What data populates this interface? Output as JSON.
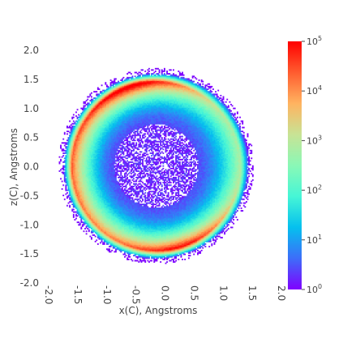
{
  "chart_data": {
    "type": "heatmap",
    "title": "",
    "xlabel": "x(C), Angstroms",
    "ylabel": "z(C), Angstroms",
    "xlim": [
      -2.0,
      2.0
    ],
    "ylim": [
      -2.0,
      2.0
    ],
    "x_ticks": [
      "-2.0",
      "-1.5",
      "-1.0",
      "-0.5",
      "0.0",
      "0.5",
      "1.0",
      "1.5",
      "2.0"
    ],
    "y_ticks": [
      "2.0",
      "1.5",
      "1.0",
      "0.5",
      "0.0",
      "-0.5",
      "-1.0",
      "-1.5",
      "-2.0"
    ],
    "grid": false,
    "density": {
      "center": [
        -0.05,
        0.0
      ],
      "outer_radius": 1.6,
      "inner_sparse_radius": 0.72,
      "peak_ring_radius": 1.45,
      "peak_angles_deg": [
        -75,
        100
      ],
      "min_count": 1,
      "max_count": 100000
    },
    "colorbar": {
      "scale": "log",
      "range": [
        1,
        100000
      ],
      "ticks": [
        {
          "base": "10",
          "exp": "0"
        },
        {
          "base": "10",
          "exp": "1"
        },
        {
          "base": "10",
          "exp": "2"
        },
        {
          "base": "10",
          "exp": "3"
        },
        {
          "base": "10",
          "exp": "4"
        },
        {
          "base": "10",
          "exp": "5"
        }
      ],
      "colormap": "rainbow",
      "colors": [
        "#8000ff",
        "#3d6df9",
        "#05c0ee",
        "#46f6d6",
        "#8af8b6",
        "#c8e395",
        "#ffb360",
        "#ff5c2f",
        "#ff0000"
      ]
    }
  }
}
